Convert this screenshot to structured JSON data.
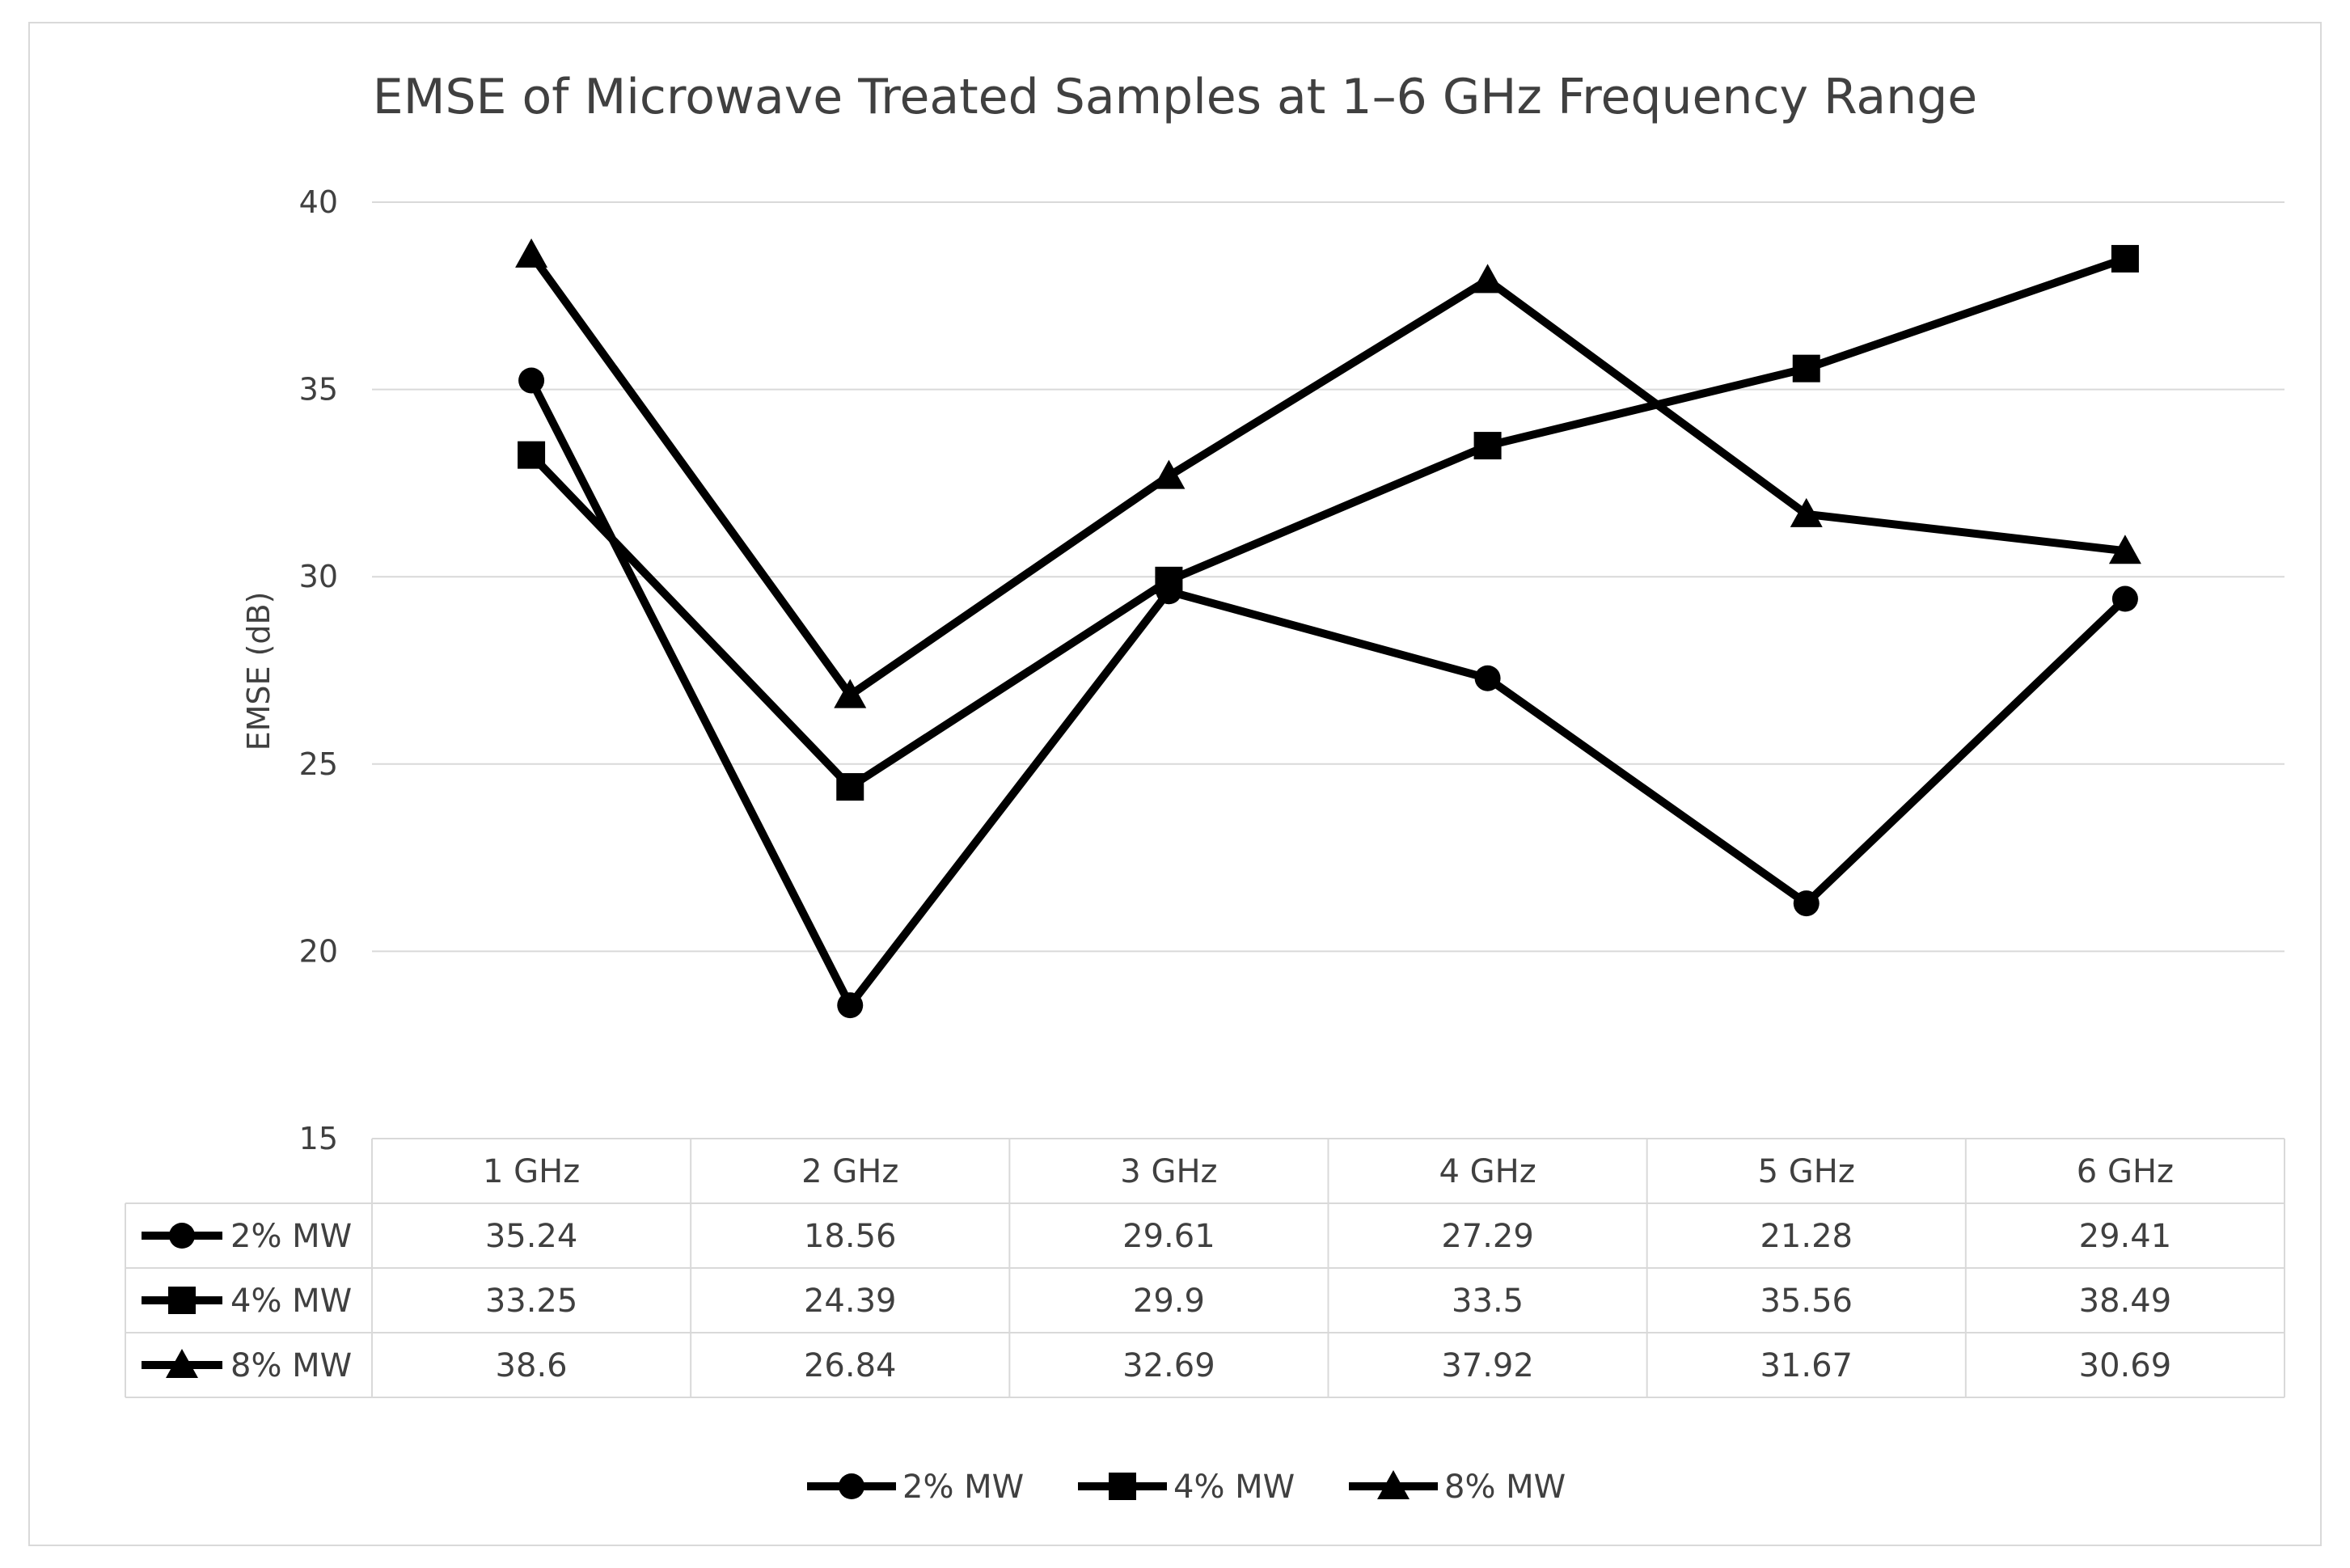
{
  "chart_data": {
    "type": "line",
    "title": "EMSE of Microwave Treated Samples at 1–6 GHz Frequency Range",
    "xlabel": "",
    "ylabel": "EMSE (dB)",
    "ylim": [
      15,
      40
    ],
    "yticks": [
      15,
      20,
      25,
      30,
      35,
      40
    ],
    "ytick_labels": [
      "15",
      "20",
      "25",
      "30",
      "35",
      "40"
    ],
    "categories": [
      "1 GHz",
      "2 GHz",
      "3 GHz",
      "4 GHz",
      "5 GHz",
      "6 GHz"
    ],
    "grid": true,
    "legend_position": "bottom",
    "data_table": true,
    "series": [
      {
        "name": "2% MW",
        "marker": "circle",
        "color": "#000000",
        "values": [
          35.24,
          18.56,
          29.61,
          27.29,
          21.28,
          29.41
        ],
        "table_values": [
          "35.24",
          "18.56",
          "29.61",
          "27.29",
          "21.28",
          "29.41"
        ]
      },
      {
        "name": "4% MW",
        "marker": "square",
        "color": "#000000",
        "values": [
          33.25,
          24.39,
          29.9,
          33.5,
          35.56,
          38.49
        ],
        "table_values": [
          "33.25",
          "24.39",
          "29.9",
          "33.5",
          "35.56",
          "38.49"
        ]
      },
      {
        "name": "8% MW",
        "marker": "triangle",
        "color": "#000000",
        "values": [
          38.6,
          26.84,
          32.69,
          37.92,
          31.67,
          30.69
        ],
        "table_values": [
          "38.6",
          "26.84",
          "32.69",
          "37.92",
          "31.67",
          "30.69"
        ]
      }
    ],
    "colors": {
      "gridline": "#d9d9d9",
      "text": "#404040",
      "line": "#000000"
    }
  }
}
